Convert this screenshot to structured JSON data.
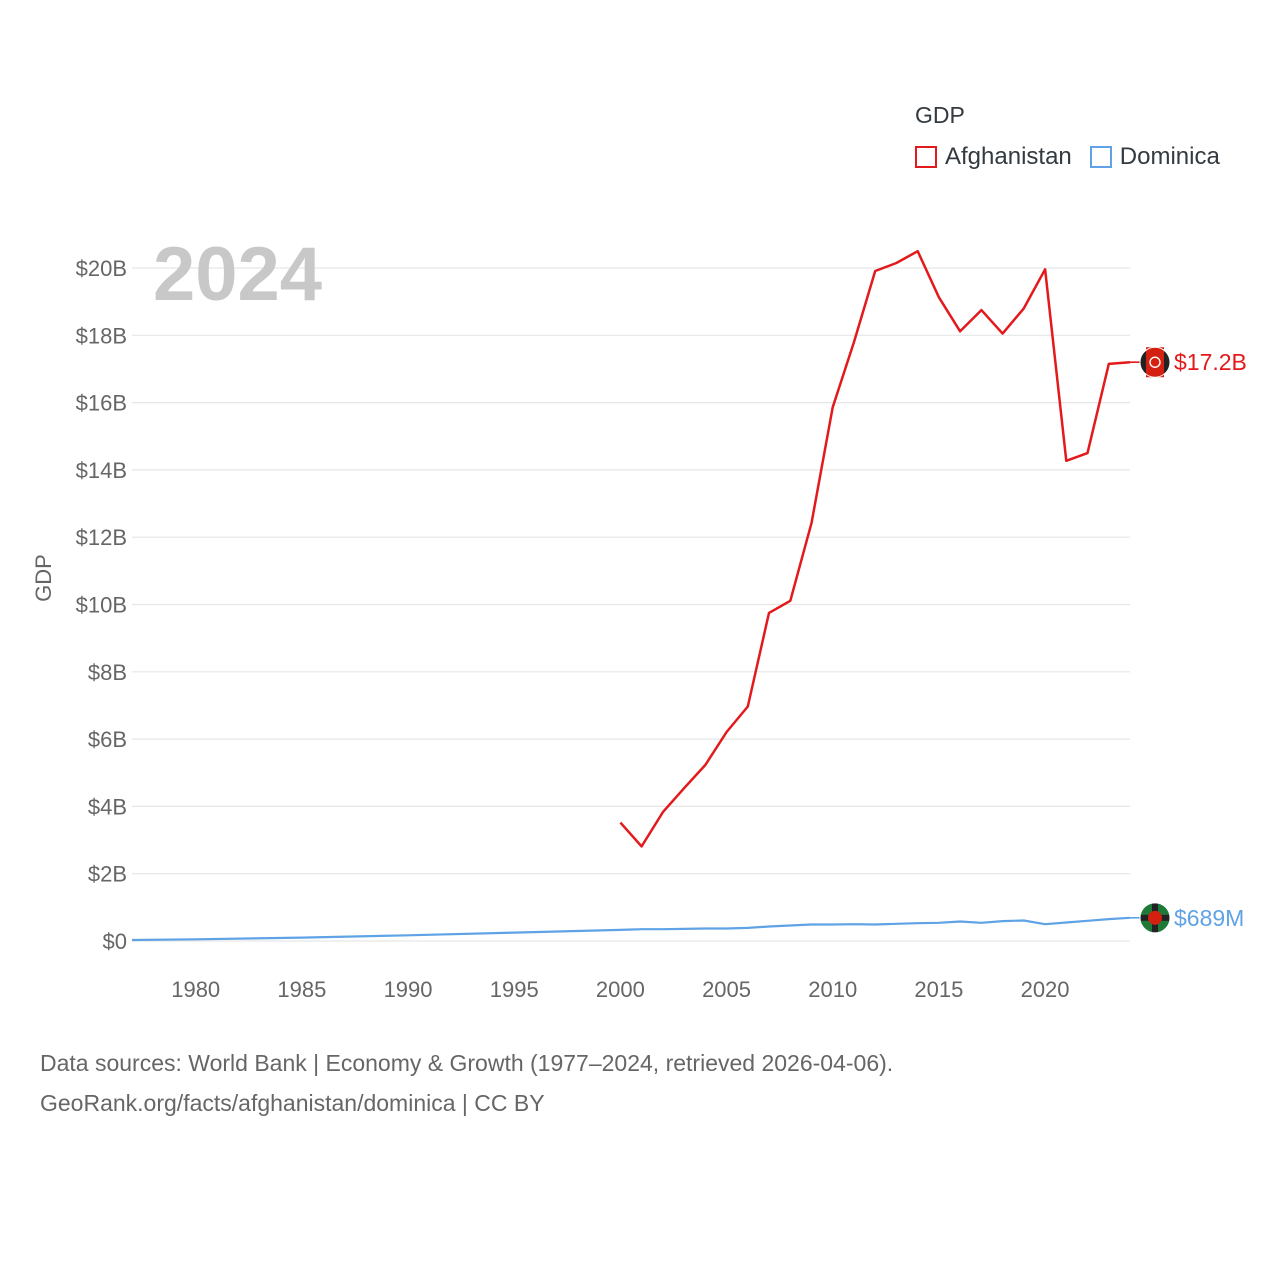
{
  "legend": {
    "title": "GDP",
    "items": [
      {
        "label": "Afghanistan",
        "color": "#e31a1c"
      },
      {
        "label": "Dominica",
        "color": "#5fa3e6"
      }
    ]
  },
  "chart_data": {
    "type": "line",
    "year_label": "2024",
    "ylabel": "GDP",
    "xlim": [
      1977,
      2024
    ],
    "ylim": [
      0,
      20
    ],
    "x_ticks": [
      1980,
      1985,
      1990,
      1995,
      2000,
      2005,
      2010,
      2015,
      2020
    ],
    "y_ticks": [
      {
        "value": 0,
        "label": "$0"
      },
      {
        "value": 2,
        "label": "$2B"
      },
      {
        "value": 4,
        "label": "$4B"
      },
      {
        "value": 6,
        "label": "$6B"
      },
      {
        "value": 8,
        "label": "$8B"
      },
      {
        "value": 10,
        "label": "$10B"
      },
      {
        "value": 12,
        "label": "$12B"
      },
      {
        "value": 14,
        "label": "$14B"
      },
      {
        "value": 16,
        "label": "$16B"
      },
      {
        "value": 18,
        "label": "$18B"
      },
      {
        "value": 20,
        "label": "$20B"
      }
    ],
    "series": [
      {
        "name": "Afghanistan",
        "color": "#e31a1c",
        "end_label": "$17.2B",
        "x": [
          2000,
          2001,
          2002,
          2003,
          2004,
          2005,
          2006,
          2007,
          2008,
          2009,
          2010,
          2011,
          2012,
          2013,
          2014,
          2015,
          2016,
          2017,
          2018,
          2019,
          2020,
          2021,
          2022,
          2023,
          2024
        ],
        "values": [
          3.52,
          2.81,
          3.83,
          4.54,
          5.23,
          6.21,
          6.97,
          9.75,
          10.11,
          12.42,
          15.86,
          17.8,
          19.91,
          20.15,
          20.5,
          19.13,
          18.12,
          18.75,
          18.05,
          18.8,
          19.96,
          14.27,
          14.5,
          17.15,
          17.2
        ]
      },
      {
        "name": "Dominica",
        "color": "#5fa3e6",
        "end_label": "$689M",
        "x": [
          1977,
          1980,
          1985,
          1990,
          1995,
          2000,
          2001,
          2002,
          2003,
          2004,
          2005,
          2006,
          2007,
          2008,
          2009,
          2010,
          2011,
          2012,
          2013,
          2014,
          2015,
          2016,
          2017,
          2018,
          2019,
          2020,
          2021,
          2022,
          2023,
          2024
        ],
        "values": [
          0.03,
          0.05,
          0.1,
          0.17,
          0.25,
          0.33,
          0.35,
          0.35,
          0.36,
          0.37,
          0.37,
          0.39,
          0.43,
          0.46,
          0.49,
          0.49,
          0.5,
          0.49,
          0.51,
          0.53,
          0.54,
          0.58,
          0.54,
          0.59,
          0.61,
          0.5,
          0.55,
          0.6,
          0.65,
          0.689
        ]
      }
    ]
  },
  "footer": {
    "line1": "Data sources: World Bank | Economy & Growth (1977–2024, retrieved 2026-04-06).",
    "line2": "GeoRank.org/facts/afghanistan/dominica | CC BY"
  }
}
